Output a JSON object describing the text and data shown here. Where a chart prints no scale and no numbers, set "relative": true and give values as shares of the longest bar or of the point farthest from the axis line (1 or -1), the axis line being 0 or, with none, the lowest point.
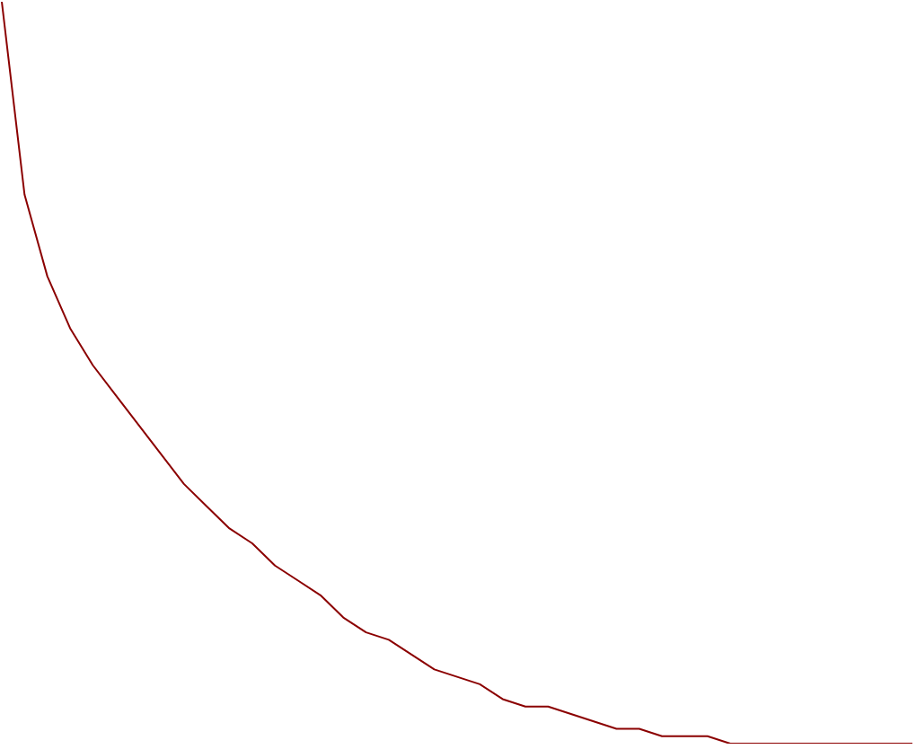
{
  "chart_data": {
    "type": "line",
    "relative": true,
    "color": "#8b0000",
    "categories": [
      null,
      null,
      null,
      null,
      null,
      null,
      null,
      null,
      null,
      null,
      null,
      null,
      null,
      null,
      null,
      null,
      null,
      null,
      null,
      null,
      null,
      null,
      null,
      null,
      null,
      null,
      null,
      null,
      null,
      null,
      null,
      null,
      null,
      null,
      null,
      null,
      null,
      null,
      null,
      null,
      null
    ],
    "values": [
      1,
      0.74,
      0.63,
      0.56,
      0.51,
      0.47,
      0.43,
      0.39,
      0.35,
      0.32,
      0.29,
      0.27,
      0.24,
      0.22,
      0.2,
      0.17,
      0.15,
      0.14,
      0.12,
      0.1,
      0.09,
      0.08,
      0.06,
      0.05,
      0.05,
      0.04,
      0.03,
      0.02,
      0.02,
      0.01,
      0.01,
      0.01,
      0,
      0,
      0,
      0,
      0,
      0,
      0,
      0,
      0
    ]
  }
}
